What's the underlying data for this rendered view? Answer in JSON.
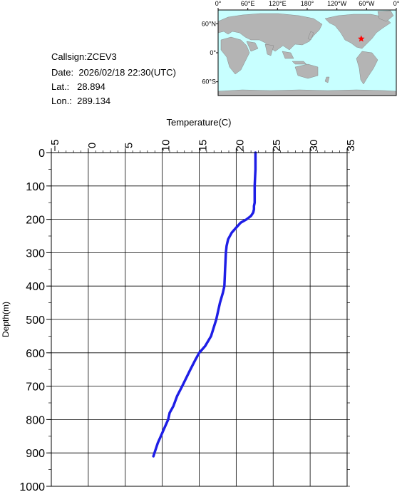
{
  "station": {
    "callsign_label": "Callsign:",
    "callsign": "ZCEV3",
    "date_label": "Date:",
    "date": "2026/02/18 22:30(UTC)",
    "lat_label": "Lat.:",
    "lat": "28.894",
    "lon_label": "Lon.:",
    "lon": "289.134"
  },
  "map": {
    "lon_labels": [
      "0°",
      "60°E",
      "120°E",
      "180°",
      "120°W",
      "60°W",
      "0°"
    ],
    "lat_labels": [
      "60°N",
      "0°",
      "60°S"
    ],
    "ocean_color": "#c8ffff",
    "land_color": "#b4b4b4",
    "marker_color": "#ff0000",
    "marker_icon": "star-icon"
  },
  "chart_data": {
    "type": "line",
    "xlabel": "Temperature(C)",
    "ylabel": "Depth(m)",
    "xlim": [
      -5,
      35
    ],
    "ylim": [
      0,
      1000
    ],
    "y_inverted": true,
    "x_ticks": [
      -5,
      0,
      5,
      10,
      15,
      20,
      25,
      30,
      35
    ],
    "y_ticks": [
      0,
      100,
      200,
      300,
      400,
      500,
      600,
      700,
      800,
      900,
      1000
    ],
    "grid": true,
    "line_color": "#1e1ee6",
    "series": [
      {
        "x": [
          22.6,
          22.6,
          22.5,
          22.5,
          22.4,
          22.4,
          22.3,
          22.0,
          21.4,
          20.6,
          19.8,
          19.4,
          18.9,
          18.7,
          18.6,
          18.5,
          18.4,
          18.2,
          17.8,
          17.3,
          16.6,
          15.8,
          15.0,
          14.5,
          13.8,
          12.7,
          12.0,
          11.5,
          11.0,
          10.8,
          10.2,
          9.8,
          9.4,
          9.1,
          8.8
        ],
        "y": [
          0,
          50,
          100,
          150,
          160,
          170,
          180,
          190,
          200,
          210,
          230,
          240,
          260,
          280,
          300,
          350,
          400,
          420,
          450,
          500,
          550,
          580,
          600,
          620,
          650,
          700,
          730,
          760,
          780,
          800,
          830,
          850,
          870,
          890,
          910
        ]
      }
    ]
  }
}
